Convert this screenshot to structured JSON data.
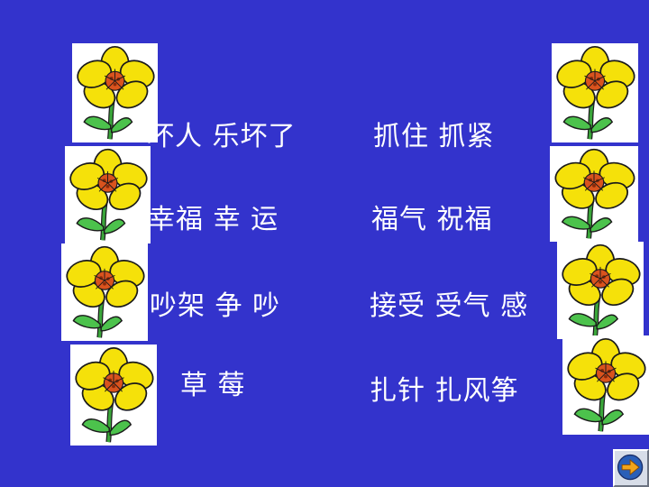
{
  "colors": {
    "background": "#3333cc",
    "text": "#ffffff",
    "petal": "#f5e10a",
    "flower_center": "#d9531e",
    "stem": "#3aa63a"
  },
  "icons": {
    "flower": "yellow-flower-icon",
    "next": "next-arrow-icon"
  },
  "left_column": [
    {
      "text": "坏人   乐坏了"
    },
    {
      "text": "幸福    幸  运"
    },
    {
      "text": "吵架   争  吵"
    },
    {
      "text": "草  莓"
    }
  ],
  "right_column": [
    {
      "text": "抓住  抓紧"
    },
    {
      "text": "福气  祝福"
    },
    {
      "text": "接受  受气  感"
    },
    {
      "text": "扎针  扎风筝"
    }
  ]
}
